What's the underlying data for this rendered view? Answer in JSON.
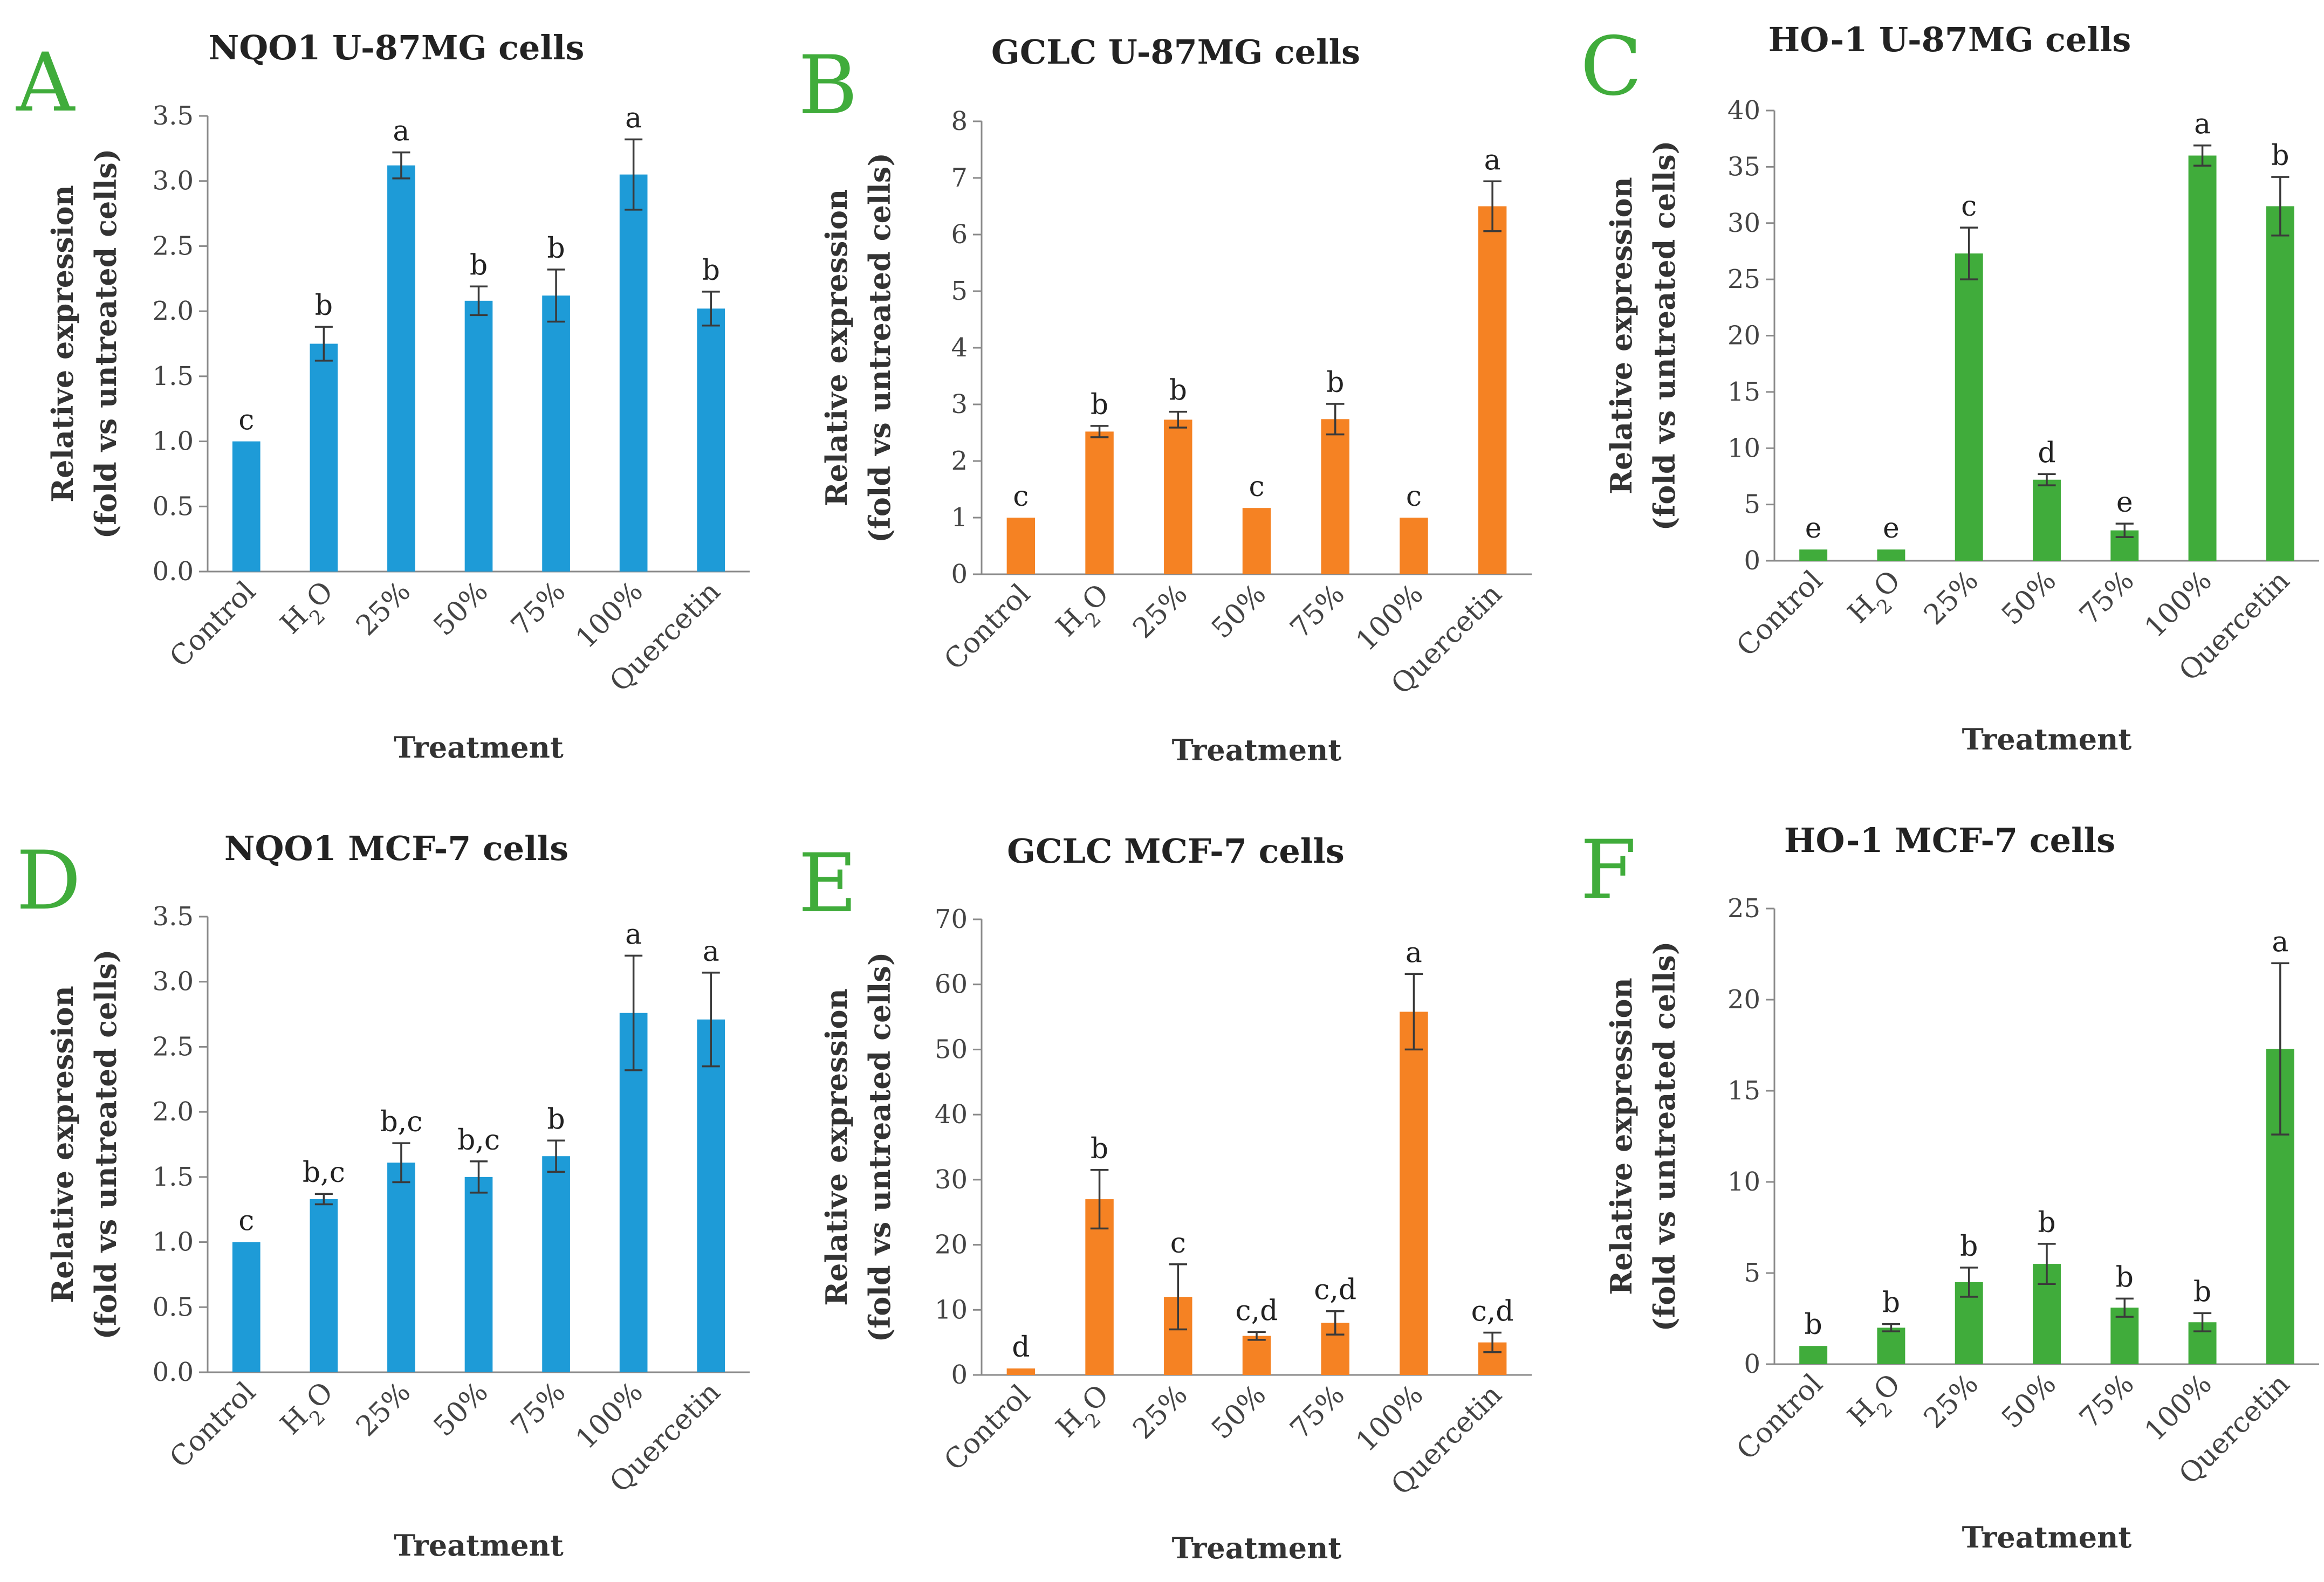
{
  "x_axis_label": "Treatment",
  "y_axis_label_line1": "Relative expression",
  "y_axis_label_line2": "(fold vs untreated cells)",
  "colors": {
    "blue": "#1e9bd7",
    "orange": "#f58223",
    "green": "#40ac3b",
    "panel_letter": "#40ac3b"
  },
  "chart_data": [
    {
      "panel": "A",
      "type": "bar",
      "title": "NQO1 U-87MG cells",
      "xlabel": "Treatment",
      "ylabel": "Relative expression (fold vs untreated cells)",
      "color": "blue",
      "categories": [
        "Control",
        "H2O",
        "25%",
        "50%",
        "75%",
        "100%",
        "Quercetin"
      ],
      "values": [
        1.0,
        1.75,
        3.12,
        2.08,
        2.12,
        3.05,
        2.02
      ],
      "errors": [
        0.0,
        0.13,
        0.1,
        0.11,
        0.2,
        0.27,
        0.13
      ],
      "labels": [
        "c",
        "b",
        "a",
        "b",
        "b",
        "a",
        "b"
      ],
      "ylim": [
        0,
        3.5
      ],
      "yticks": [
        "0.0",
        "0.5",
        "1.0",
        "1.5",
        "2.0",
        "2.5",
        "3.0",
        "3.5"
      ]
    },
    {
      "panel": "B",
      "type": "bar",
      "title": "GCLC U-87MG cells",
      "xlabel": "Treatment",
      "ylabel": "Relative expression (fold vs untreated cells)",
      "color": "orange",
      "categories": [
        "Control",
        "H2O",
        "25%",
        "50%",
        "75%",
        "100%",
        "Quercetin"
      ],
      "values": [
        1.0,
        2.52,
        2.73,
        1.17,
        2.74,
        1.0,
        6.5
      ],
      "errors": [
        0.0,
        0.1,
        0.14,
        0.0,
        0.27,
        0.0,
        0.44
      ],
      "labels": [
        "c",
        "b",
        "b",
        "c",
        "b",
        "c",
        "a"
      ],
      "ylim": [
        0,
        8
      ],
      "yticks": [
        "0",
        "1",
        "2",
        "3",
        "4",
        "5",
        "6",
        "7",
        "8"
      ]
    },
    {
      "panel": "C",
      "type": "bar",
      "title": "HO-1 U-87MG cells",
      "xlabel": "Treatment",
      "ylabel": "Relative expression (fold vs untreated cells)",
      "color": "green",
      "categories": [
        "Control",
        "H2O",
        "25%",
        "50%",
        "75%",
        "100%",
        "Quercetin"
      ],
      "values": [
        1.0,
        1.0,
        27.3,
        7.2,
        2.7,
        36.0,
        31.5
      ],
      "errors": [
        0.0,
        0.0,
        2.3,
        0.5,
        0.6,
        0.9,
        2.6
      ],
      "labels": [
        "e",
        "e",
        "c",
        "d",
        "e",
        "a",
        "b"
      ],
      "ylim": [
        0,
        40
      ],
      "yticks": [
        "0",
        "5",
        "10",
        "15",
        "20",
        "25",
        "30",
        "35",
        "40"
      ]
    },
    {
      "panel": "D",
      "type": "bar",
      "title": "NQO1 MCF-7 cells",
      "xlabel": "Treatment",
      "ylabel": "Relative expression (fold vs untreated cells)",
      "color": "blue",
      "categories": [
        "Control",
        "H2O",
        "25%",
        "50%",
        "75%",
        "100%",
        "Quercetin"
      ],
      "values": [
        1.0,
        1.33,
        1.61,
        1.5,
        1.66,
        2.76,
        2.71
      ],
      "errors": [
        0.0,
        0.04,
        0.15,
        0.12,
        0.12,
        0.44,
        0.36
      ],
      "labels": [
        "c",
        "b,c",
        "b,c",
        "b,c",
        "b",
        "a",
        "a"
      ],
      "ylim": [
        0,
        3.5
      ],
      "yticks": [
        "0.0",
        "0.5",
        "1.0",
        "1.5",
        "2.0",
        "2.5",
        "3.0",
        "3.5"
      ]
    },
    {
      "panel": "E",
      "type": "bar",
      "title": "GCLC MCF-7 cells",
      "xlabel": "Treatment",
      "ylabel": "Relative expression (fold vs untreated cells)",
      "color": "orange",
      "categories": [
        "Control",
        "H2O",
        "25%",
        "50%",
        "75%",
        "100%",
        "Quercetin"
      ],
      "values": [
        1.0,
        27.0,
        12.0,
        6.0,
        8.0,
        55.8,
        5.0
      ],
      "errors": [
        0.0,
        4.5,
        5.0,
        0.6,
        1.8,
        5.8,
        1.5
      ],
      "labels": [
        "d",
        "b",
        "c",
        "c,d",
        "c,d",
        "a",
        "c,d"
      ],
      "ylim": [
        0,
        70
      ],
      "yticks": [
        "0",
        "10",
        "20",
        "30",
        "40",
        "50",
        "60",
        "70"
      ]
    },
    {
      "panel": "F",
      "type": "bar",
      "title": "HO-1 MCF-7 cells",
      "xlabel": "Treatment",
      "ylabel": "Relative expression (fold vs untreated cells)",
      "color": "green",
      "categories": [
        "Control",
        "H2O",
        "25%",
        "50%",
        "75%",
        "100%",
        "Quercetin"
      ],
      "values": [
        1.0,
        2.0,
        4.5,
        5.5,
        3.1,
        2.3,
        17.3
      ],
      "errors": [
        0.0,
        0.2,
        0.8,
        1.1,
        0.5,
        0.5,
        4.7
      ],
      "labels": [
        "b",
        "b",
        "b",
        "b",
        "b",
        "b",
        "a"
      ],
      "ylim": [
        0,
        25
      ],
      "yticks": [
        "0",
        "5",
        "10",
        "15",
        "20",
        "25"
      ]
    }
  ]
}
